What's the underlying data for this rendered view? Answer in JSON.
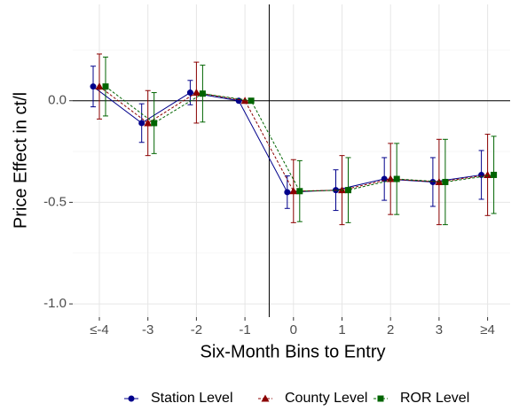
{
  "chart_data": {
    "type": "errorbar-line",
    "x_label": "Six-Month Bins to Entry",
    "y_label": "Price Effect in ct/l",
    "categories": [
      "≤-4",
      "-3",
      "-2",
      "-1",
      "0",
      "1",
      "2",
      "3",
      "≥4"
    ],
    "ylim": [
      -1.065,
      0.474
    ],
    "yticks": [
      {
        "value": -1,
        "label": "-1.0"
      },
      {
        "value": -0.5,
        "label": "-0.5"
      },
      {
        "value": 0,
        "label": "0.0"
      }
    ],
    "grid": true,
    "hline": 0,
    "vline_index": 3.5,
    "legend": "bottom",
    "series": [
      {
        "name": "Station Level",
        "color": "#00008b",
        "marker": "circle",
        "dash": false,
        "values": [
          0.07,
          -0.11,
          0.04,
          0,
          -0.45,
          -0.44,
          -0.385,
          -0.4,
          -0.365
        ],
        "errors": [
          0.1,
          0.095,
          0.06,
          0,
          0.08,
          0.1,
          0.105,
          0.12,
          0.12
        ]
      },
      {
        "name": "County Level",
        "color": "#8b0000",
        "marker": "triangle",
        "dash": true,
        "values": [
          0.07,
          -0.11,
          0.04,
          0,
          -0.445,
          -0.44,
          -0.385,
          -0.4,
          -0.365
        ],
        "errors": [
          0.16,
          0.16,
          0.15,
          0,
          0.155,
          0.17,
          0.175,
          0.21,
          0.2
        ]
      },
      {
        "name": "ROR Level",
        "color": "#006400",
        "marker": "square",
        "dash": true,
        "values": [
          0.07,
          -0.11,
          0.035,
          0,
          -0.445,
          -0.44,
          -0.385,
          -0.4,
          -0.365
        ],
        "errors": [
          0.145,
          0.15,
          0.14,
          0,
          0.15,
          0.16,
          0.175,
          0.21,
          0.19
        ]
      }
    ]
  }
}
